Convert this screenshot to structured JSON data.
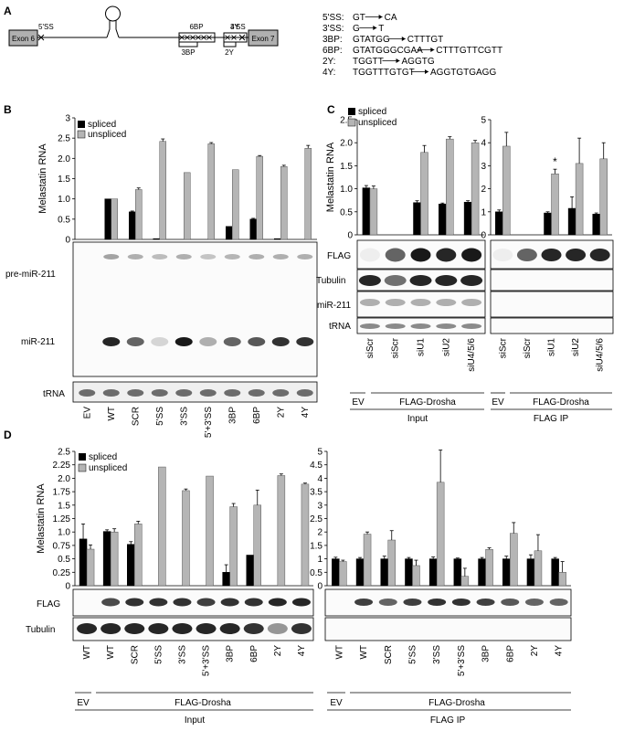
{
  "panel_labels": {
    "a": "A",
    "b": "B",
    "c": "C",
    "d": "D"
  },
  "schematic": {
    "exon_left": "Exon 6",
    "exon_right": "Exon 7",
    "ss5": "5'SS",
    "ss3": "3'SS",
    "bp6": "6BP",
    "bp3": "3BP",
    "y4": "4Y",
    "y2": "2Y",
    "mutations": [
      {
        "label": "5'SS:",
        "from": "GT",
        "to": "CA"
      },
      {
        "label": "3'SS:",
        "from": "G",
        "to": "T"
      },
      {
        "label": "3BP:",
        "from": "GTATGG",
        "to": "CTTTGT"
      },
      {
        "label": "6BP:",
        "from": "GTATGGGCGAA",
        "to": "CTTTGTTCGTT"
      },
      {
        "label": "2Y:",
        "from": "TGGTT",
        "to": "AGGTG"
      },
      {
        "label": "4Y:",
        "from": "TGGTTTGTGT",
        "to": "AGGTGTGAGG"
      }
    ]
  },
  "legend": {
    "spliced": "spliced",
    "unspliced": "unspliced"
  },
  "colors": {
    "spliced": "#000000",
    "unspliced": "#b5b5b5"
  },
  "chart_data": [
    {
      "type": "bar",
      "panel": "B",
      "ylabel": "Melastatin RNA",
      "ylim": [
        0,
        3
      ],
      "yticks": [
        "0",
        "0.5",
        "1.0",
        "1.5",
        "2.0",
        "2.5",
        "3"
      ],
      "categories": [
        "EV",
        "WT",
        "SCR",
        "5'SS",
        "3'SS",
        "5'+3'SS",
        "3BP",
        "6BP",
        "2Y",
        "4Y"
      ],
      "series": [
        {
          "name": "spliced",
          "values": [
            0,
            1.0,
            0.68,
            0.02,
            0,
            0,
            0.32,
            0.5,
            0.02,
            0
          ],
          "errors": [
            0,
            0,
            0.02,
            0,
            0,
            0,
            0,
            0.02,
            0,
            0
          ]
        },
        {
          "name": "unspliced",
          "values": [
            0,
            1.0,
            1.23,
            2.42,
            1.65,
            2.36,
            1.72,
            2.05,
            1.8,
            2.25
          ],
          "errors": [
            0,
            0,
            0.04,
            0.06,
            0,
            0.03,
            0,
            0.02,
            0.03,
            0.07
          ]
        }
      ]
    },
    {
      "type": "bar",
      "panel": "C-input",
      "ylabel": "Melastatin RNA",
      "ylim": [
        0,
        2.5
      ],
      "yticks": [
        "0",
        "0.5",
        "1.0",
        "1.5",
        "2.0",
        "2.5"
      ],
      "categories": [
        "siScr",
        "siScr",
        "siU1",
        "siU2",
        "siU4/5/6"
      ],
      "series": [
        {
          "name": "spliced",
          "values": [
            1.02,
            0,
            0.7,
            0.67,
            0.71
          ],
          "errors": [
            0.05,
            0,
            0.04,
            0.02,
            0.03
          ]
        },
        {
          "name": "unspliced",
          "values": [
            1.0,
            0,
            1.79,
            2.08,
            2.0
          ],
          "errors": [
            0.06,
            0,
            0.15,
            0.05,
            0.05
          ]
        }
      ]
    },
    {
      "type": "bar",
      "panel": "C-ip",
      "ylim": [
        0,
        5
      ],
      "yticks": [
        "0",
        "1",
        "2",
        "3",
        "4",
        "5"
      ],
      "categories": [
        "siScr",
        "siScr",
        "siU1",
        "siU2",
        "siU4/5/6"
      ],
      "series": [
        {
          "name": "spliced",
          "values": [
            1.0,
            0,
            0.95,
            1.15,
            0.9
          ],
          "errors": [
            0.08,
            0,
            0.05,
            0.5,
            0.05
          ]
        },
        {
          "name": "unspliced",
          "values": [
            3.85,
            0,
            2.65,
            3.1,
            3.3
          ],
          "errors": [
            0.6,
            0,
            0.2,
            1.1,
            0.7
          ]
        }
      ],
      "annotation": "*"
    },
    {
      "type": "bar",
      "panel": "D-input",
      "ylabel": "Melastatin RNA",
      "ylim": [
        0,
        2.5
      ],
      "yticks": [
        "0",
        "0.25",
        "0.5",
        "0.75",
        "1.0",
        "1.25",
        "1.5",
        "1.75",
        "2.0",
        "2.25",
        "2.5"
      ],
      "categories": [
        "WT",
        "WT",
        "SCR",
        "5'SS",
        "3'SS",
        "5'+3'SS",
        "3BP",
        "6BP",
        "2Y",
        "4Y"
      ],
      "series": [
        {
          "name": "spliced",
          "values": [
            0.87,
            1.01,
            0.77,
            0,
            0,
            0,
            0.25,
            0.57,
            0,
            0
          ],
          "errors": [
            0.28,
            0.03,
            0.05,
            0,
            0,
            0,
            0.14,
            0,
            0,
            0
          ]
        },
        {
          "name": "unspliced",
          "values": [
            0.68,
            1.0,
            1.15,
            2.21,
            1.77,
            2.04,
            1.47,
            1.5,
            2.05,
            1.89
          ],
          "errors": [
            0.08,
            0.06,
            0.05,
            0,
            0.03,
            0,
            0.06,
            0.28,
            0.03,
            0.02
          ]
        }
      ]
    },
    {
      "type": "bar",
      "panel": "D-ip",
      "ylim": [
        0,
        5
      ],
      "yticks": [
        "0",
        "0.5",
        "1",
        "1.5",
        "2",
        "2.5",
        "3",
        "3.5",
        "4",
        "4.5",
        "5"
      ],
      "categories": [
        "WT",
        "WT",
        "SCR",
        "5'SS",
        "3'SS",
        "5'+3'SS",
        "3BP",
        "6BP",
        "2Y",
        "4Y"
      ],
      "series": [
        {
          "name": "spliced",
          "values": [
            1.0,
            1.0,
            1.0,
            1.0,
            1.0,
            1.0,
            1.0,
            1.0,
            1.0,
            1.0
          ],
          "errors": [
            0.06,
            0.05,
            0.1,
            0.05,
            0.07,
            0.03,
            0.05,
            0.1,
            0.15,
            0.05
          ]
        },
        {
          "name": "unspliced",
          "values": [
            0.9,
            1.92,
            1.7,
            0.75,
            3.85,
            0.35,
            1.35,
            1.95,
            1.3,
            0.5
          ],
          "errors": [
            0.05,
            0.08,
            0.35,
            0.2,
            1.2,
            0.3,
            0.06,
            0.4,
            0.6,
            0.4
          ]
        }
      ]
    }
  ],
  "blots": {
    "b": {
      "pre": "pre-miR-211",
      "mir": "miR-211",
      "trna": "tRNA"
    },
    "c": {
      "flag": "FLAG",
      "tubulin": "Tubulin",
      "mir": "miR-211",
      "trna": "tRNA"
    },
    "d": {
      "flag": "FLAG",
      "tubulin": "Tubulin"
    }
  },
  "groups": {
    "ev": "EV",
    "flag_drosha": "FLAG-Drosha",
    "input": "Input",
    "flag_ip": "FLAG IP"
  }
}
